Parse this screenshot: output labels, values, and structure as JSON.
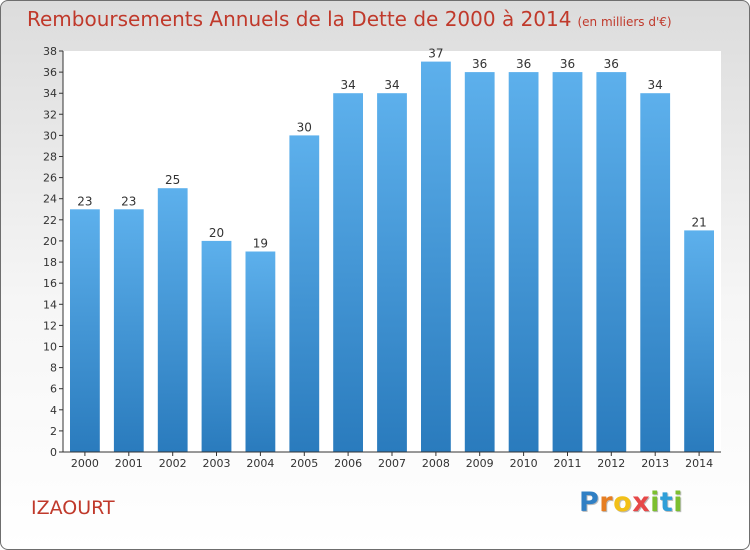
{
  "header": {
    "title": "Remboursements Annuels de la Dette de 2000 à 2014",
    "unit": "(en milliers d'€)"
  },
  "footer": {
    "town": "IZAOURT",
    "brand": "Proxiti"
  },
  "colors": {
    "title": "#c0392b",
    "bar_light": "#5db0ec",
    "bar_dark": "#2a7bbd",
    "axis": "#333333"
  },
  "chart_data": {
    "type": "bar",
    "title": "Remboursements Annuels de la Dette de 2000 à 2014",
    "subtitle": "(en milliers d'€)",
    "xlabel": "",
    "ylabel": "",
    "categories": [
      "2000",
      "2001",
      "2002",
      "2003",
      "2004",
      "2005",
      "2006",
      "2007",
      "2008",
      "2009",
      "2010",
      "2011",
      "2012",
      "2013",
      "2014"
    ],
    "values": [
      23,
      23,
      25,
      20,
      19,
      30,
      34,
      34,
      37,
      36,
      36,
      36,
      36,
      34,
      21
    ],
    "ylim": [
      0,
      38
    ],
    "yticks": [
      0,
      2,
      4,
      6,
      8,
      10,
      12,
      14,
      16,
      18,
      20,
      22,
      24,
      26,
      28,
      30,
      32,
      34,
      36,
      38
    ],
    "grid": false,
    "legend": "none"
  }
}
